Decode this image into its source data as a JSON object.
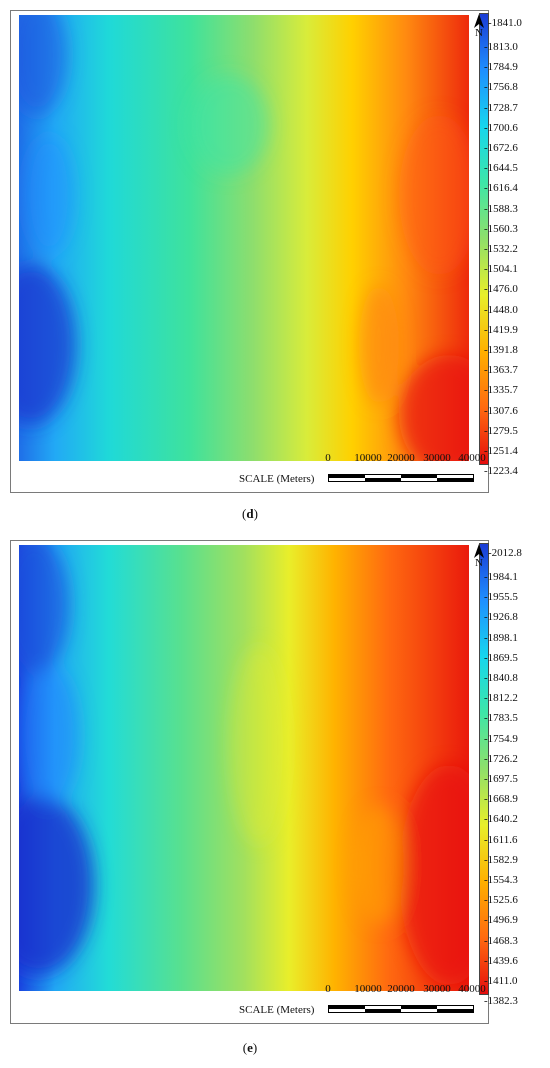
{
  "panels": [
    {
      "id": "d",
      "caption_letter": "d",
      "north_label": "N",
      "legend": [
        "-1841.0",
        "-1813.0",
        "-1784.9",
        "-1756.8",
        "-1728.7",
        "-1700.6",
        "-1672.6",
        "-1644.5",
        "-1616.4",
        "-1588.3",
        "-1560.3",
        "-1532.2",
        "-1504.1",
        "-1476.0",
        "-1448.0",
        "-1419.9",
        "-1391.8",
        "-1363.7",
        "-1335.7",
        "-1307.6",
        "-1279.5",
        "-1251.4",
        "-1223.4"
      ],
      "scale_title": "SCALE (Meters)",
      "scale_ticks": [
        "0",
        "10000",
        "20000",
        "30000",
        "40000"
      ]
    },
    {
      "id": "e",
      "caption_letter": "e",
      "north_label": "N",
      "legend": [
        "-2012.8",
        "-1984.1",
        "-1955.5",
        "-1926.8",
        "-1898.1",
        "-1869.5",
        "-1840.8",
        "-1812.2",
        "-1783.5",
        "-1754.9",
        "-1726.2",
        "-1697.5",
        "-1668.9",
        "-1640.2",
        "-1611.6",
        "-1582.9",
        "-1554.3",
        "-1525.6",
        "-1496.9",
        "-1468.3",
        "-1439.6",
        "-1411.0",
        "-1382.3"
      ],
      "scale_title": "SCALE (Meters)",
      "scale_ticks": [
        "0",
        "10000",
        "20000",
        "30000",
        "40000"
      ]
    }
  ],
  "colors": {
    "ramp": [
      "#1a3bd4",
      "#1f8fff",
      "#16d6ee",
      "#3de6a8",
      "#8fe06a",
      "#e8ef2a",
      "#ffb000",
      "#ff6a10",
      "#e50d0d"
    ],
    "frame": "#7a7a7a"
  }
}
